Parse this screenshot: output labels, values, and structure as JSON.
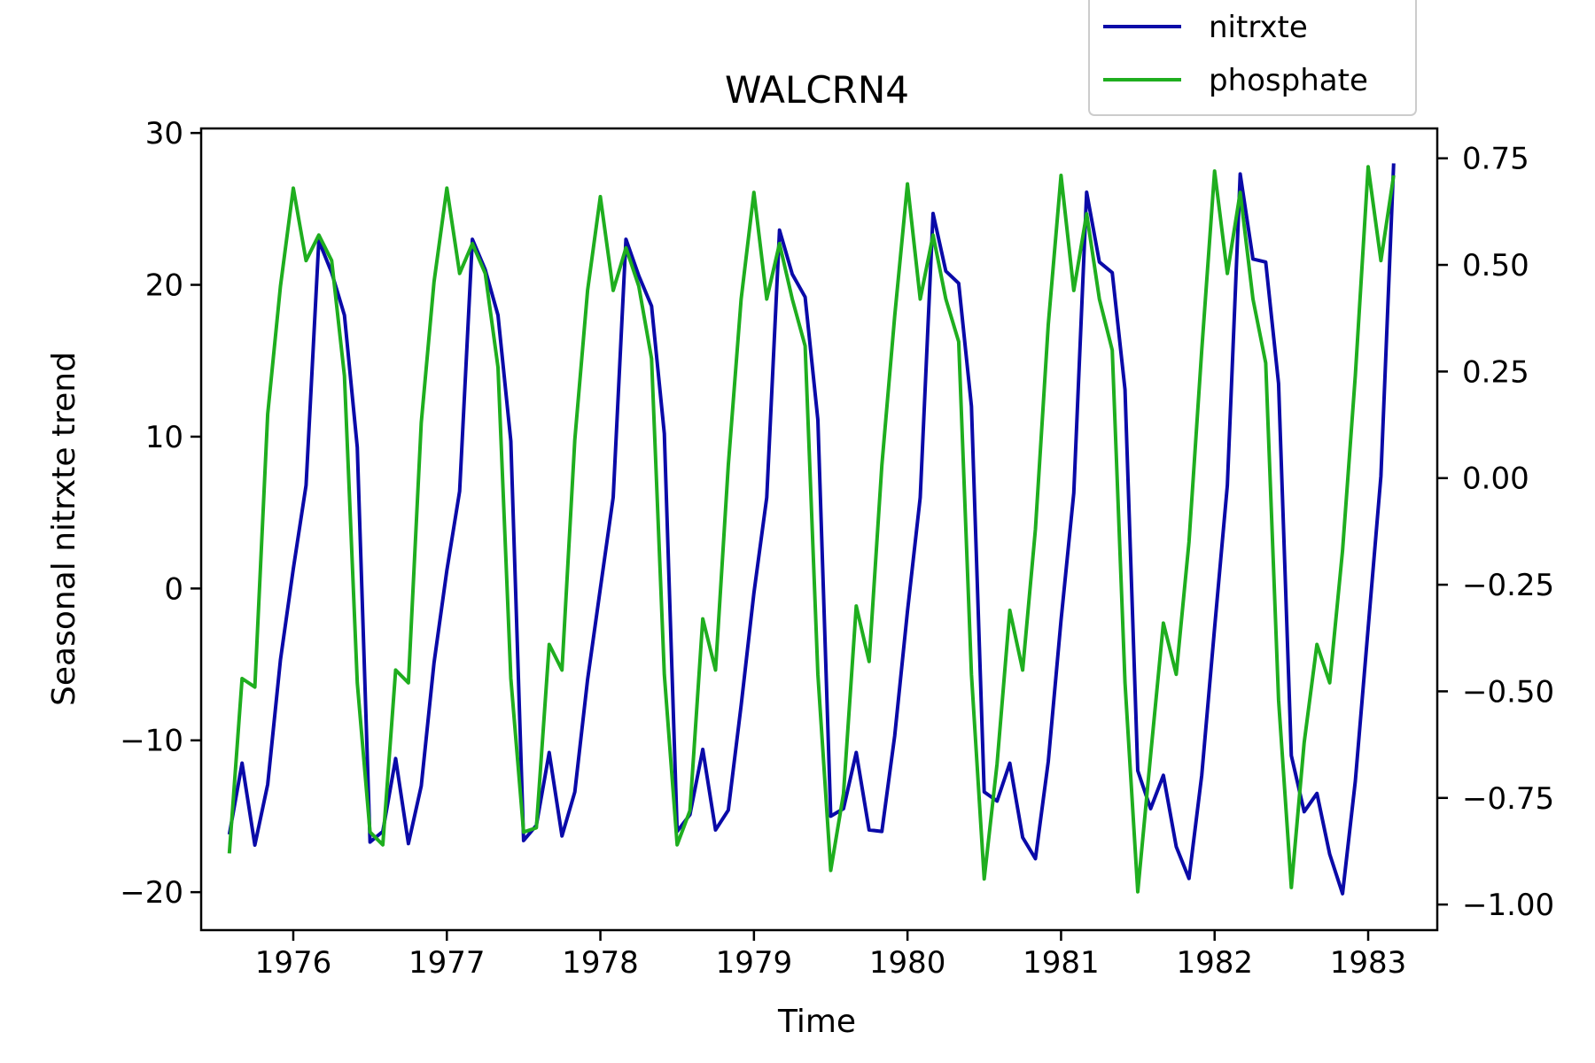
{
  "chart_data": {
    "type": "line",
    "title": "WALCRN4",
    "xlabel": "Time",
    "ylabel": "Seasonal nitrxte trend",
    "y2label": "",
    "x_tick_labels": [
      "1976",
      "1977",
      "1978",
      "1979",
      "1980",
      "1981",
      "1982",
      "1983"
    ],
    "x_tick_values": [
      1976,
      1977,
      1978,
      1979,
      1980,
      1981,
      1982,
      1983
    ],
    "xlim": [
      1975.4,
      1983.45
    ],
    "ylim": [
      -22.5,
      30.3
    ],
    "y_ticks": [
      -20,
      -10,
      0,
      10,
      20,
      30
    ],
    "y_tick_labels": [
      "−20",
      "−10",
      "0",
      "10",
      "20",
      "30"
    ],
    "y2lim": [
      -1.06,
      0.82
    ],
    "y2_ticks": [
      -1.0,
      -0.75,
      -0.5,
      -0.25,
      0.0,
      0.25,
      0.5,
      0.75
    ],
    "y2_tick_labels": [
      "−1.00",
      "−0.75",
      "−0.50",
      "−0.25",
      "0.00",
      "0.25",
      "0.50",
      "0.75"
    ],
    "grid": false,
    "legend_position": "top-right",
    "series": [
      {
        "name": "nitrxte",
        "axis": "left",
        "color": "#0a0aa8",
        "x_start": 1975.5833,
        "x_step": 0.08333,
        "values": [
          -16.2,
          -11.5,
          -16.9,
          -12.9,
          -4.7,
          1.3,
          6.8,
          22.9,
          20.8,
          18.0,
          9.3,
          -16.7,
          -16.0,
          -11.2,
          -16.8,
          -13.0,
          -4.9,
          1.2,
          6.4,
          23.0,
          21.0,
          18.0,
          9.7,
          -16.6,
          -15.6,
          -10.8,
          -16.3,
          -13.4,
          -6.0,
          0.0,
          6.0,
          23.0,
          20.6,
          18.6,
          10.2,
          -16.0,
          -14.9,
          -10.6,
          -15.9,
          -14.6,
          -7.7,
          -0.3,
          6.0,
          23.6,
          20.7,
          19.2,
          11.1,
          -15.0,
          -14.5,
          -10.8,
          -15.9,
          -16.0,
          -9.7,
          -1.5,
          6.0,
          24.7,
          20.9,
          20.1,
          12.0,
          -13.4,
          -14.0,
          -11.5,
          -16.4,
          -17.8,
          -11.4,
          -2.1,
          6.3,
          26.1,
          21.5,
          20.8,
          13.1,
          -12.0,
          -14.5,
          -12.3,
          -17.0,
          -19.1,
          -12.3,
          -2.6,
          6.8,
          27.3,
          21.7,
          21.5,
          13.5,
          -11.0,
          -14.7,
          -13.5,
          -17.5,
          -20.1,
          -12.7,
          -2.6,
          7.4,
          28.0
        ]
      },
      {
        "name": "phosphate",
        "axis": "right",
        "color": "#1fae1f",
        "x_start": 1975.5833,
        "x_step": 0.08333,
        "values": [
          -0.88,
          -0.47,
          -0.49,
          0.15,
          0.45,
          0.68,
          0.51,
          0.57,
          0.51,
          0.24,
          -0.48,
          -0.83,
          -0.86,
          -0.45,
          -0.48,
          0.13,
          0.46,
          0.68,
          0.48,
          0.55,
          0.48,
          0.26,
          -0.47,
          -0.83,
          -0.82,
          -0.39,
          -0.45,
          0.09,
          0.44,
          0.66,
          0.44,
          0.54,
          0.45,
          0.28,
          -0.46,
          -0.86,
          -0.78,
          -0.33,
          -0.45,
          0.03,
          0.42,
          0.67,
          0.42,
          0.55,
          0.42,
          0.31,
          -0.46,
          -0.92,
          -0.74,
          -0.3,
          -0.43,
          0.03,
          0.38,
          0.69,
          0.42,
          0.57,
          0.42,
          0.32,
          -0.46,
          -0.94,
          -0.67,
          -0.31,
          -0.45,
          -0.12,
          0.36,
          0.71,
          0.44,
          0.62,
          0.42,
          0.3,
          -0.48,
          -0.97,
          -0.65,
          -0.34,
          -0.46,
          -0.15,
          0.3,
          0.72,
          0.48,
          0.67,
          0.42,
          0.27,
          -0.52,
          -0.96,
          -0.62,
          -0.39,
          -0.48,
          -0.17,
          0.24,
          0.73,
          0.51,
          0.71
        ]
      }
    ]
  }
}
